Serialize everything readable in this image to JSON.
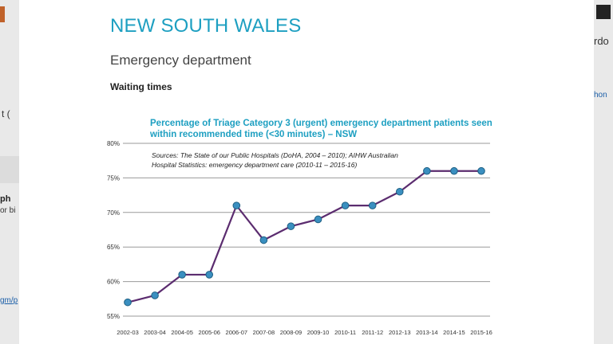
{
  "background": {
    "left_fragments": [
      "t (",
      "ph",
      "or bi",
      "gm/p"
    ],
    "right_fragments": [
      "rdo",
      "hon"
    ]
  },
  "page": {
    "state_title": "NEW SOUTH WALES",
    "section_title": "Emergency department",
    "sub_title": "Waiting times"
  },
  "colors": {
    "title_blue": "#1d9fc1",
    "line": "#5b2c6f",
    "marker": "#3a8fc0",
    "grid": "#9a9a9a"
  },
  "chart_data": {
    "type": "line",
    "title_line1": "Percentage of Triage Category 3 (urgent) emergency department patients seen",
    "title_line2": "within recommended time (<30 minutes) – NSW",
    "source_line1": "Sources: The State of our Public Hospitals (DoHA, 2004 – 2010); AIHW Australian",
    "source_line2": "Hospital Statistics: emergency department care (2010-11 – 2015-16)",
    "categories": [
      "2002-03",
      "2003-04",
      "2004-05",
      "2005-06",
      "2006-07",
      "2007-08",
      "2008-09",
      "2009-10",
      "2010-11",
      "2011-12",
      "2012-13",
      "2013-14",
      "2014-15",
      "2015-16"
    ],
    "values": [
      57,
      58,
      61,
      61,
      71,
      66,
      68,
      69,
      71,
      71,
      73,
      76,
      76,
      76
    ],
    "ylim": [
      55,
      80
    ],
    "yticks": [
      55,
      60,
      65,
      70,
      75,
      80
    ],
    "ytick_labels": [
      "55%",
      "60%",
      "65%",
      "70%",
      "75%",
      "80%"
    ],
    "grid": true,
    "legend": "none"
  }
}
